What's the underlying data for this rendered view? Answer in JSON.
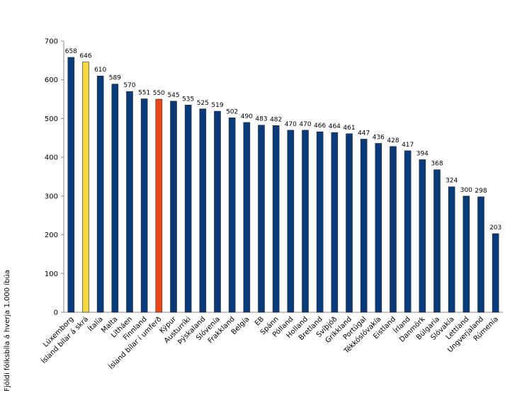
{
  "chart_data": {
    "type": "bar",
    "ylabel": "Fjöldi fólksbíla á hverja 1.000 íbúa",
    "ylim": [
      0,
      700
    ],
    "yticks": [
      0,
      100,
      200,
      300,
      400,
      500,
      600,
      700
    ],
    "grid": false,
    "legend": "none",
    "default_color": "#0b3a7a",
    "categories": [
      "Lúxemborg",
      "Ísland bílar á skrá",
      "Ítalía",
      "Malta",
      "Litháen",
      "Finnland",
      "Ísland bílar í umferð",
      "Kýpur",
      "Austurríki",
      "Þýskaland",
      "Slóvenía",
      "Frakkland",
      "Belgía",
      "EB",
      "Spánn",
      "Pólland",
      "Holland",
      "Bretland",
      "Svíþjóð",
      "Grikkland",
      "Portúgal",
      "Tékkóslóvakía",
      "Eistland",
      "Írland",
      "Danmörk",
      "Búlgaría",
      "Slóvakía",
      "Lettland",
      "Ungverjaland",
      "Rúmenía"
    ],
    "values": [
      658,
      646,
      610,
      589,
      570,
      551,
      550,
      545,
      535,
      525,
      519,
      502,
      490,
      483,
      482,
      470,
      470,
      466,
      464,
      461,
      447,
      436,
      428,
      417,
      394,
      368,
      324,
      300,
      298,
      203
    ],
    "highlights": [
      {
        "category": "Ísland bílar á skrá",
        "color": "#f5d742"
      },
      {
        "category": "Ísland bílar í umferð",
        "color": "#e8481c"
      }
    ]
  }
}
